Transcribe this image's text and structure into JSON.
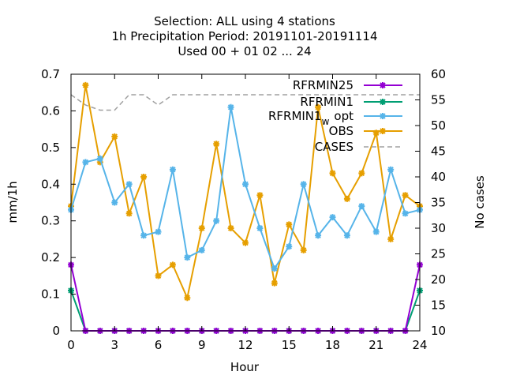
{
  "chart_data": {
    "type": "line",
    "title_lines": [
      "Selection: ALL using     4 stations",
      "1h Precipitation   Period: 20191101-20191114",
      "Used  00 + 01 02 ... 24"
    ],
    "xlabel": "Hour",
    "ylabel": "mm/1h",
    "y2label": "No cases",
    "xlim": [
      0,
      24
    ],
    "ylim": [
      0,
      0.7
    ],
    "y2lim": [
      10,
      60
    ],
    "x_ticks": [
      "0",
      "3",
      "6",
      "9",
      "12",
      "15",
      "18",
      "21",
      "24"
    ],
    "y_ticks": [
      "0",
      "0.1",
      "0.2",
      "0.3",
      "0.4",
      "0.5",
      "0.6",
      "0.7"
    ],
    "y2_ticks": [
      "10",
      "15",
      "20",
      "25",
      "30",
      "35",
      "40",
      "45",
      "50",
      "55",
      "60"
    ],
    "x": [
      0,
      1,
      2,
      3,
      4,
      5,
      6,
      7,
      8,
      9,
      10,
      11,
      12,
      13,
      14,
      15,
      16,
      17,
      18,
      19,
      20,
      21,
      22,
      23,
      24
    ],
    "legend_position": "top-right",
    "series": [
      {
        "name": "RFRMIN25",
        "color": "#9400d3",
        "axis": "y",
        "values": [
          0.18,
          0,
          0,
          0,
          0,
          0,
          0,
          0,
          0,
          0,
          0,
          0,
          0,
          0,
          0,
          0,
          0,
          0,
          0,
          0,
          0,
          0,
          0,
          0,
          0.18
        ]
      },
      {
        "name": "RFRMIN1",
        "color": "#009e73",
        "axis": "y",
        "values": [
          0.11,
          0,
          0,
          0,
          0,
          0,
          0,
          0,
          0,
          0,
          0,
          0,
          0,
          0,
          0,
          0,
          0,
          0,
          0,
          0,
          0,
          0,
          0,
          0,
          0.11
        ]
      },
      {
        "name": "RFRMIN1",
        "name_sub": "w",
        "name_suffix": "opt",
        "color": "#56b4e9",
        "axis": "y",
        "values": [
          0.33,
          0.46,
          0.47,
          0.35,
          0.4,
          0.26,
          0.27,
          0.44,
          0.2,
          0.22,
          0.3,
          0.61,
          0.4,
          0.28,
          0.17,
          0.23,
          0.4,
          0.26,
          0.31,
          0.26,
          0.34,
          0.27,
          0.44,
          0.32,
          0.33
        ]
      },
      {
        "name": "OBS",
        "color": "#e69f00",
        "axis": "y",
        "values": [
          0.34,
          0.67,
          0.46,
          0.53,
          0.32,
          0.42,
          0.15,
          0.18,
          0.09,
          0.28,
          0.51,
          0.28,
          0.24,
          0.37,
          0.13,
          0.29,
          0.22,
          0.61,
          0.43,
          0.36,
          0.43,
          0.54,
          0.25,
          0.37,
          0.34
        ]
      },
      {
        "name": "CASES",
        "color": "#a0a0a0",
        "axis": "y2",
        "dashed": true,
        "values": [
          56,
          54,
          53,
          53,
          56,
          56,
          54,
          56,
          56,
          56,
          56,
          56,
          56,
          56,
          56,
          56,
          56,
          56,
          56,
          56,
          56,
          56,
          56,
          56,
          56
        ]
      }
    ]
  }
}
